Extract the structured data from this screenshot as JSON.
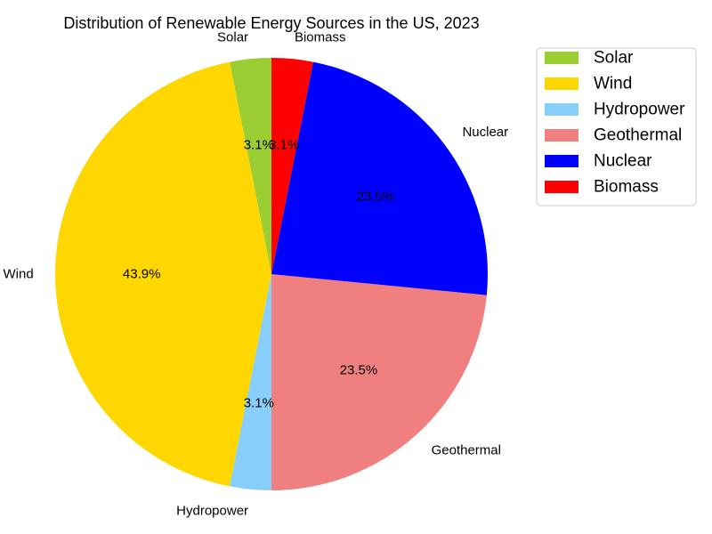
{
  "chart_data": {
    "type": "pie",
    "title": "Distribution of Renewable Energy Sources in the US, 2023",
    "start_angle_deg": 90,
    "direction": "counterclockwise",
    "legend_position": "top-right",
    "slices": [
      {
        "label": "Solar",
        "value": 3.1,
        "pct_label": "3.1%",
        "color": "#9ACD32"
      },
      {
        "label": "Wind",
        "value": 43.9,
        "pct_label": "43.9%",
        "color": "#FFD700"
      },
      {
        "label": "Hydropower",
        "value": 3.1,
        "pct_label": "3.1%",
        "color": "#87CEFA"
      },
      {
        "label": "Geothermal",
        "value": 23.5,
        "pct_label": "23.5%",
        "color": "#F08080"
      },
      {
        "label": "Nuclear",
        "value": 23.5,
        "pct_label": "23.5%",
        "color": "#0000FF"
      },
      {
        "label": "Biomass",
        "value": 3.1,
        "pct_label": "3.1%",
        "color": "#FF0000"
      }
    ]
  }
}
